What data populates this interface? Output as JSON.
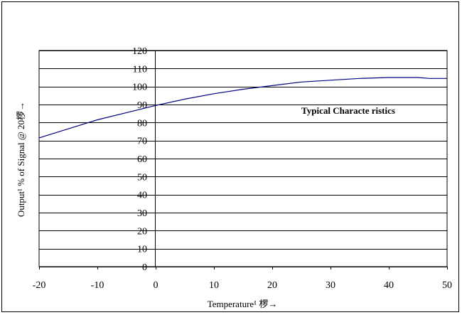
{
  "chart_data": {
    "type": "line",
    "title": "",
    "xlabel": "Temperature¹ 椤→",
    "ylabel": "Output¹ % of Signal @ 20椤→",
    "annotation": "Typical Characte ristics",
    "xlim": [
      -20,
      50
    ],
    "ylim": [
      0,
      120
    ],
    "x_ticks": [
      -20,
      -10,
      0,
      10,
      20,
      30,
      40,
      50
    ],
    "y_ticks": [
      0,
      10,
      20,
      30,
      40,
      50,
      60,
      70,
      80,
      90,
      100,
      110,
      120
    ],
    "grid": true,
    "legend": "none",
    "colors": {
      "line": "#000080",
      "grid": "#000000",
      "plot_background": "#ffffff"
    },
    "series": [
      {
        "x": [
          -20,
          -15,
          -10,
          -5,
          0,
          5,
          10,
          15,
          20,
          25,
          30,
          35,
          40,
          45,
          47,
          50
        ],
        "y": [
          71.5,
          76.5,
          81.5,
          85.5,
          89.5,
          93,
          96,
          98.5,
          100.5,
          102.5,
          103.5,
          104.5,
          105,
          105,
          104.5,
          104.5
        ]
      }
    ]
  }
}
